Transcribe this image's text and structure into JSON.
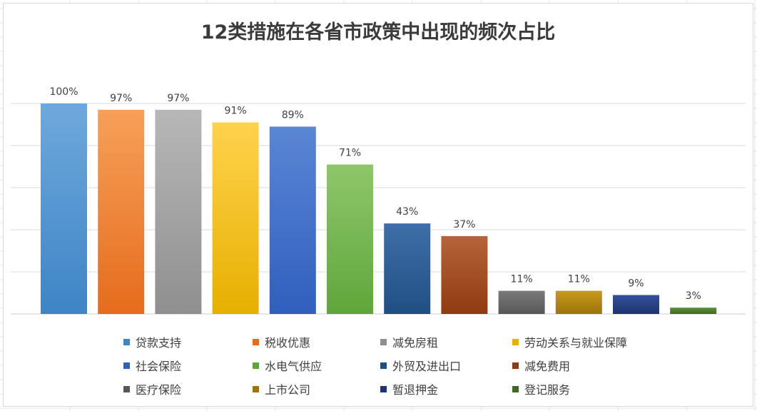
{
  "chart_data": {
    "type": "bar",
    "title": "12类措施在各省市政策中出现的频次占比",
    "xlabel": "",
    "ylabel": "",
    "ylim": [
      0,
      1.0
    ],
    "grid": true,
    "legend": "bottom",
    "categories": [
      "贷款支持",
      "税收优惠",
      "减免房租",
      "劳动关系与就业保障",
      "社会保险",
      "水电气供应",
      "外贸及进出口",
      "减免费用",
      "医疗保险",
      "上市公司",
      "暂退押金",
      "登记服务"
    ],
    "values": [
      1.0,
      0.97,
      0.97,
      0.91,
      0.89,
      0.71,
      0.43,
      0.37,
      0.11,
      0.11,
      0.09,
      0.03
    ],
    "data_labels": [
      "100%",
      "97%",
      "97%",
      "91%",
      "89%",
      "71%",
      "43%",
      "37%",
      "11%",
      "11%",
      "9%",
      "3%"
    ],
    "colors": [
      [
        "#6fa8dc",
        "#3d85c6"
      ],
      [
        "#f6a05a",
        "#e66c1c"
      ],
      [
        "#b7b7b7",
        "#8f8f8f"
      ],
      [
        "#ffd24d",
        "#e6b000"
      ],
      [
        "#5b86d6",
        "#2f5fbd"
      ],
      [
        "#8ec76a",
        "#5fa63a"
      ],
      [
        "#3f6fa8",
        "#1f4f82"
      ],
      [
        "#b8643a",
        "#8f3a10"
      ],
      [
        "#7a7a7a",
        "#575757"
      ],
      [
        "#c8991e",
        "#9c7408"
      ],
      [
        "#34519a",
        "#1f3470"
      ],
      [
        "#5d8f3a",
        "#3f6a22"
      ]
    ]
  }
}
